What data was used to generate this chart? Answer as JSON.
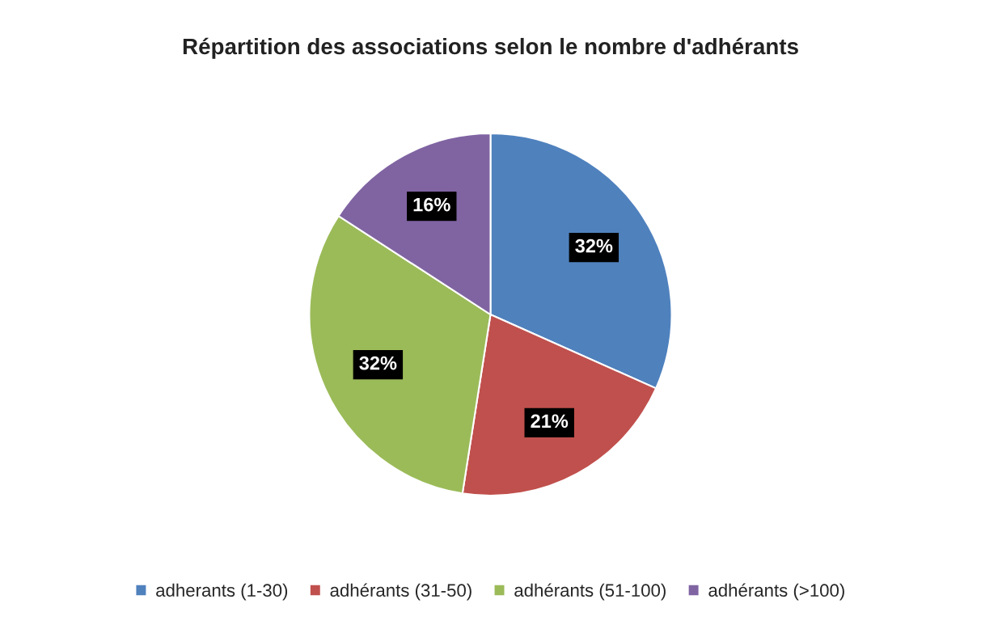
{
  "chart_data": {
    "type": "pie",
    "title": "Répartition des associations selon le nombre d'adhérants",
    "categories": [
      "adherants (1-30)",
      "adhérants (31-50)",
      "adhérants (51-100)",
      "adhérants (>100)"
    ],
    "values": [
      32,
      21,
      32,
      16
    ],
    "value_labels": [
      "32%",
      "21%",
      "32%",
      "16%"
    ],
    "colors": [
      "#4f81bd",
      "#c0504d",
      "#9bbb59",
      "#8064a2"
    ],
    "legend": "bottom"
  }
}
